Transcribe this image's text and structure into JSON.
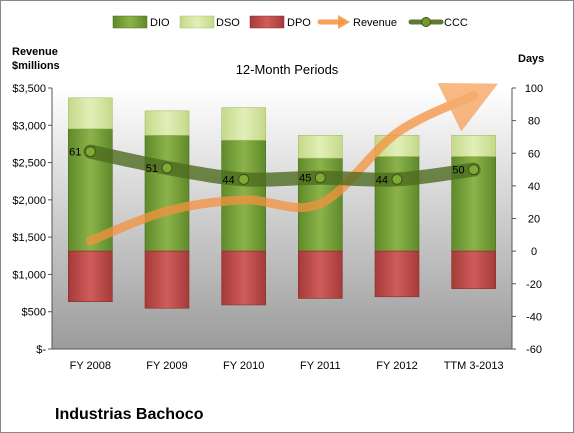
{
  "chart_data": {
    "type": "bar",
    "title": "12-Month Periods",
    "company": "Industrias Bachoco",
    "y_left_label_line1": "Revenue",
    "y_left_label_line2": "$millions",
    "y_right_label": "Days",
    "y_left_ticks": [
      "$-",
      "$500",
      "$1,000",
      "$1,500",
      "$2,000",
      "$2,500",
      "$3,000",
      "$3,500"
    ],
    "y_right_ticks": [
      "-60",
      "-40",
      "-20",
      "0",
      "20",
      "40",
      "60",
      "80",
      "100"
    ],
    "ylim_left": [
      0,
      3500
    ],
    "ylim_right": [
      -60,
      100
    ],
    "categories": [
      "FY 2008",
      "FY 2009",
      "FY 2010",
      "FY 2011",
      "FY 2012",
      "TTM 3-2013"
    ],
    "legend": [
      "DIO",
      "DSO",
      "DPO",
      "Revenue",
      "CCC"
    ],
    "series": [
      {
        "name": "DIO",
        "axis": "right",
        "from": [
          0,
          0,
          0,
          0,
          0,
          0
        ],
        "to": [
          75,
          71,
          68,
          57,
          58,
          58
        ]
      },
      {
        "name": "DSO",
        "axis": "right",
        "from": [
          75,
          71,
          68,
          57,
          58,
          58
        ],
        "to": [
          94,
          86,
          88,
          71,
          71,
          71
        ]
      },
      {
        "name": "DPO",
        "axis": "right",
        "from": [
          -31,
          -35,
          -33,
          -29,
          -28,
          -23
        ],
        "to": [
          0,
          0,
          0,
          0,
          0,
          0
        ]
      },
      {
        "name": "Revenue",
        "axis": "left",
        "values": [
          1450,
          1850,
          2000,
          1950,
          2900,
          3400
        ]
      },
      {
        "name": "CCC",
        "axis": "right",
        "values": [
          61,
          51,
          44,
          45,
          44,
          50
        ],
        "labels": [
          "61",
          "51",
          "44",
          "45",
          "44",
          "50"
        ]
      }
    ],
    "colors": {
      "DIO": "#7aa13b",
      "DSO": "#d3e59a",
      "DPO": "#c1504f",
      "Revenue": "#f5923e",
      "CCC": "#4d6b1f",
      "plot_bg_top": "#ffffff",
      "plot_bg_bottom": "#9b9b9b"
    },
    "grid": false,
    "legend_position": "top"
  }
}
